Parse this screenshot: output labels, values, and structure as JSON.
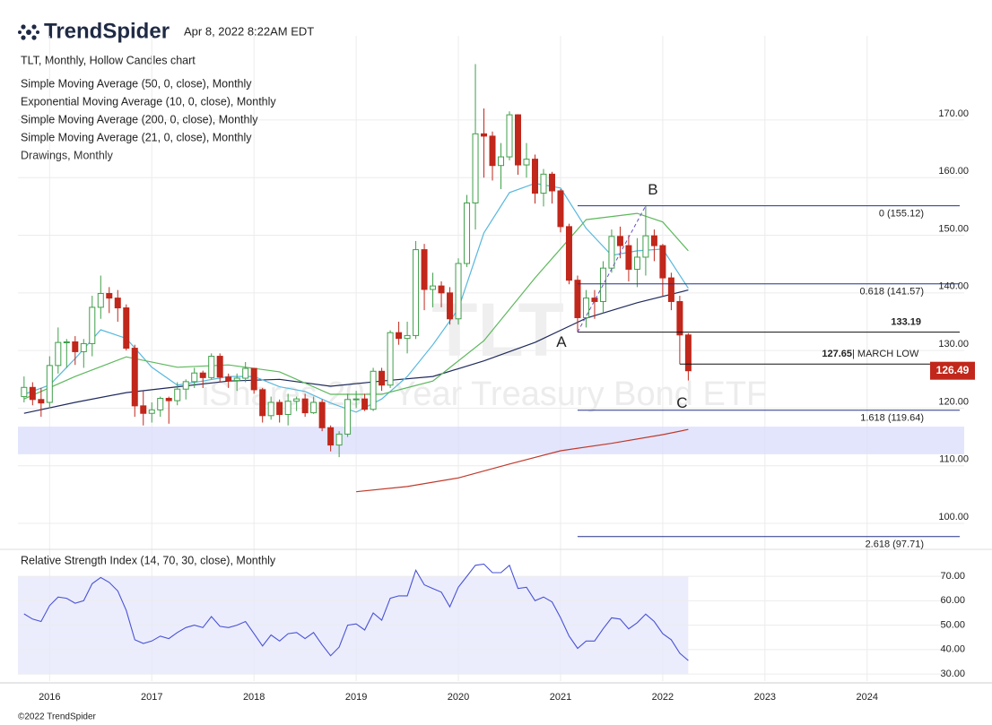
{
  "header": {
    "brand": "TrendSpider",
    "timestamp": "Apr 8, 2022 8:22AM EDT"
  },
  "footer": "©2022 TrendSpider",
  "chart_data": [
    {
      "type": "candlestick",
      "title": "TLT, Monthly, Hollow Candles chart",
      "watermark": "TLT",
      "watermark_subtitle": "iShares 20+ Year Treasury Bond ETF",
      "x": [
        "2015-10",
        "2015-11",
        "2015-12",
        "2016-01",
        "2016-02",
        "2016-03",
        "2016-04",
        "2016-05",
        "2016-06",
        "2016-07",
        "2016-08",
        "2016-09",
        "2016-10",
        "2016-11",
        "2016-12",
        "2017-01",
        "2017-02",
        "2017-03",
        "2017-04",
        "2017-05",
        "2017-06",
        "2017-07",
        "2017-08",
        "2017-09",
        "2017-10",
        "2017-11",
        "2017-12",
        "2018-01",
        "2018-02",
        "2018-03",
        "2018-04",
        "2018-05",
        "2018-06",
        "2018-07",
        "2018-08",
        "2018-09",
        "2018-10",
        "2018-11",
        "2018-12",
        "2019-01",
        "2019-02",
        "2019-03",
        "2019-04",
        "2019-05",
        "2019-06",
        "2019-07",
        "2019-08",
        "2019-09",
        "2019-10",
        "2019-11",
        "2019-12",
        "2020-01",
        "2020-02",
        "2020-03",
        "2020-04",
        "2020-05",
        "2020-06",
        "2020-07",
        "2020-08",
        "2020-09",
        "2020-10",
        "2020-11",
        "2020-12",
        "2021-01",
        "2021-02",
        "2021-03",
        "2021-04",
        "2021-05",
        "2021-06",
        "2021-07",
        "2021-08",
        "2021-09",
        "2021-10",
        "2021-11",
        "2021-12",
        "2022-01",
        "2022-02",
        "2022-03",
        "2022-04"
      ],
      "open": [
        122.0,
        123.6,
        121.5,
        121,
        127.4,
        131.4,
        131.5,
        129.8,
        131.2,
        137.5,
        139.9,
        139.1,
        137.4,
        130.4,
        120.4,
        119.1,
        119.7,
        121.7,
        121.3,
        123.3,
        124.6,
        126.1,
        125.3,
        129.0,
        125.4,
        124.8,
        125.2,
        126.9,
        123.2,
        118.7,
        121,
        118.9,
        121.2,
        121.6,
        119.2,
        121,
        116.6,
        113.6,
        115.5,
        121.5,
        121.6,
        119.8,
        126.4,
        124,
        133.1,
        132.1,
        132.6,
        147.5,
        140.6,
        141.2,
        140,
        135.5,
        145.1,
        155.6,
        167.6,
        167.2,
        162.1,
        163.6,
        170.9,
        162.2,
        163.2,
        157.3,
        160.6,
        157.7,
        151.5,
        142.2,
        135.7,
        139.1,
        138.5,
        144.3,
        149.8,
        148.2,
        144.1,
        146.2,
        149.9,
        148.2,
        142.6,
        138.5,
        132.7
      ],
      "high": [
        125.5,
        124.5,
        123.5,
        129,
        134,
        132,
        132.5,
        132,
        139.5,
        143,
        141,
        140.5,
        138,
        131,
        123,
        121,
        122,
        122,
        124.5,
        125,
        127,
        126.5,
        129.5,
        129.5,
        126,
        126,
        128,
        127,
        123.5,
        122,
        121.5,
        122.5,
        122,
        122.5,
        122,
        121.5,
        117,
        116,
        122.5,
        123,
        122.5,
        127,
        127,
        133.5,
        135,
        135,
        149,
        148.5,
        143.5,
        142,
        141,
        146,
        157,
        179.7,
        172,
        168,
        166,
        171.5,
        171,
        166,
        164,
        161.5,
        161,
        158,
        152,
        143,
        140.5,
        140.5,
        145.5,
        151,
        151.5,
        150,
        149.5,
        155.12,
        151,
        148.5,
        143.5,
        139.5,
        133
      ],
      "low": [
        121,
        120.5,
        118.5,
        120,
        126,
        127,
        127.5,
        127,
        129,
        135.5,
        136.5,
        135,
        130,
        118.5,
        117,
        117.5,
        118.5,
        117.3,
        120.5,
        121.5,
        123.5,
        123.5,
        125,
        124.5,
        123.5,
        123,
        124.5,
        122.5,
        117.5,
        118,
        117.5,
        117,
        119.5,
        118.5,
        119,
        116,
        112.5,
        111.5,
        115,
        120,
        119.5,
        119.5,
        123,
        123.5,
        131,
        129.5,
        132,
        137,
        137.5,
        137.5,
        134.5,
        134.5,
        144.5,
        151,
        160,
        159.5,
        158,
        163,
        160.5,
        160,
        155.5,
        155,
        155.5,
        150.5,
        141.5,
        133.19,
        134,
        135.5,
        136.5,
        143.5,
        146,
        142,
        141,
        143,
        145.5,
        139.5,
        137,
        127.65,
        124.8
      ],
      "close": [
        123.6,
        121.5,
        120.9,
        127.4,
        131.4,
        131.5,
        129.8,
        131.2,
        137.5,
        139.9,
        139.1,
        137.4,
        130.4,
        120.4,
        119.1,
        119.7,
        121.7,
        121.3,
        123.3,
        124.6,
        126.1,
        125.3,
        129.0,
        125.4,
        124.8,
        125.2,
        126.9,
        123.2,
        118.7,
        121.0,
        118.9,
        121.2,
        121.6,
        119.2,
        121.0,
        116.6,
        113.6,
        115.5,
        121.5,
        121.6,
        119.8,
        126.4,
        124.0,
        133.1,
        132.1,
        132.6,
        147.5,
        140.6,
        141.2,
        140.0,
        135.5,
        145.1,
        155.6,
        167.6,
        167.2,
        162.1,
        163.6,
        170.9,
        162.2,
        163.2,
        157.3,
        160.6,
        157.7,
        151.5,
        142.2,
        135.7,
        139.1,
        138.5,
        144.3,
        149.8,
        148.2,
        144.1,
        146.2,
        149.9,
        148.2,
        142.6,
        138.5,
        132.7,
        126.49
      ],
      "up_color": "#3f9f4a",
      "down_color": "#c1271b",
      "overlays": [
        {
          "name": "Simple Moving Average (50, 0, close), Monthly",
          "color": "#1f2a5c",
          "x": [
            "2015-10",
            "2016-04",
            "2016-10",
            "2017-04",
            "2017-10",
            "2018-04",
            "2018-10",
            "2019-04",
            "2019-10",
            "2020-04",
            "2020-10",
            "2021-04",
            "2021-10",
            "2022-04"
          ],
          "values": [
            119.1,
            121,
            122.7,
            123.7,
            124.7,
            125,
            123.8,
            124.7,
            125.5,
            128.2,
            131.4,
            135.6,
            138.3,
            140.5
          ]
        },
        {
          "name": "Exponential Moving Average (10, 0, close), Monthly",
          "color": "#57b8de",
          "x": [
            "2015-10",
            "2016-01",
            "2016-04",
            "2016-07",
            "2016-10",
            "2017-01",
            "2017-04",
            "2017-07",
            "2017-10",
            "2018-01",
            "2018-04",
            "2018-07",
            "2018-10",
            "2019-01",
            "2019-04",
            "2019-07",
            "2019-10",
            "2020-01",
            "2020-04",
            "2020-07",
            "2020-10",
            "2021-01",
            "2021-04",
            "2021-07",
            "2021-10",
            "2022-01",
            "2022-04"
          ],
          "values": [
            122.4,
            124,
            128.6,
            133.6,
            132.1,
            127.1,
            124,
            124.7,
            125.5,
            125.5,
            123.7,
            122.9,
            120.9,
            119.3,
            121.6,
            125.5,
            131,
            137.2,
            150.4,
            157.4,
            159,
            158.2,
            151.2,
            146.5,
            147.3,
            147.6,
            140.8
          ]
        },
        {
          "name": "Simple Moving Average (200, 0, close), Monthly",
          "color": "#c0392b",
          "x": [
            "2019-01",
            "2019-07",
            "2020-01",
            "2020-07",
            "2021-01",
            "2021-07",
            "2022-01",
            "2022-04"
          ],
          "values": [
            105.5,
            106.4,
            107.9,
            110.3,
            112.6,
            113.9,
            115.4,
            116.3
          ]
        },
        {
          "name": "Simple Moving Average (21, 0, close), Monthly",
          "color": "#5cb85c",
          "x": [
            "2015-10",
            "2016-04",
            "2016-10",
            "2017-04",
            "2017-10",
            "2018-04",
            "2018-10",
            "2019-04",
            "2019-10",
            "2020-04",
            "2020-10",
            "2021-04",
            "2021-10",
            "2022-01",
            "2022-04"
          ],
          "values": [
            121.6,
            125.5,
            128.9,
            127.1,
            127.5,
            126.3,
            122.4,
            122.4,
            124.7,
            131.7,
            142.6,
            152.7,
            153.8,
            152.3,
            147.3
          ]
        }
      ],
      "drawings_label": "Drawings, Monthly",
      "fib_color": "#26318a",
      "fib_levels": [
        {
          "label": "0 (155.12)",
          "value": 155.12,
          "from": "2021-03"
        },
        {
          "label": "0.618 (141.57)",
          "value": 141.57,
          "from": "2021-03"
        },
        {
          "label": "1.618 (119.64)",
          "value": 119.64,
          "from": "2021-03"
        },
        {
          "label": "2.618 (97.71)",
          "value": 97.71,
          "from": "2021-03"
        }
      ],
      "levels": [
        {
          "label": "133.19",
          "value": 133.19,
          "from": "2021-03"
        },
        {
          "label": "127.65",
          "value": 127.65,
          "from": "2022-03",
          "note": "| MARCH LOW"
        }
      ],
      "annotations": [
        {
          "text": "A",
          "x": "2021-03",
          "value": 133.19
        },
        {
          "text": "B",
          "x": "2021-11",
          "value": 155.12
        },
        {
          "text": "C",
          "x": "2022-04",
          "value": 119.64
        }
      ],
      "support_zone": [
        112,
        116.8
      ],
      "last_price": 126.49,
      "xlim": [
        2015.69,
        2024.95
      ],
      "xticks": [
        2016,
        2017,
        2018,
        2019,
        2020,
        2021,
        2022,
        2023,
        2024
      ],
      "ylim": [
        95.5,
        184.6
      ],
      "yticks": [
        {
          "value": 100,
          "label": "100.00"
        },
        {
          "value": 110,
          "label": "110.00"
        },
        {
          "value": 120,
          "label": "120.00"
        },
        {
          "value": 130,
          "label": "130.00"
        },
        {
          "value": 140,
          "label": "140.00"
        },
        {
          "value": 150,
          "label": "150.00"
        },
        {
          "value": 160,
          "label": "160.00"
        },
        {
          "value": 170,
          "label": "170.00"
        }
      ],
      "grid": true
    },
    {
      "type": "line",
      "title": "Relative Strength Index (14, 70, 30, close), Monthly",
      "color": "#4a52d6",
      "values": [
        54.6,
        52.5,
        51.5,
        58,
        61.5,
        61,
        59,
        60,
        67,
        69.5,
        67.5,
        64,
        56,
        44,
        42.5,
        43.5,
        45.5,
        44.5,
        47,
        49,
        50,
        49,
        53.5,
        49.5,
        49,
        50,
        51.5,
        46.5,
        41.5,
        46,
        43.5,
        46.5,
        47,
        44.5,
        47,
        42,
        37.5,
        41,
        50,
        50.5,
        48,
        55,
        52,
        61,
        62,
        62,
        72.5,
        66.5,
        65,
        63.5,
        57.5,
        65.5,
        70,
        74.5,
        75,
        71.5,
        71.5,
        74.5,
        65,
        65.5,
        60,
        61.5,
        59.5,
        53,
        45.5,
        40.5,
        43.5,
        43.5,
        48.5,
        53,
        52.5,
        48.5,
        51,
        54.5,
        51.5,
        46.5,
        44,
        38.5,
        35.5
      ],
      "band": [
        30,
        70
      ],
      "ylim": [
        27.1,
        80.3
      ],
      "yticks": [
        {
          "value": 30,
          "label": "30.00"
        },
        {
          "value": 40,
          "label": "40.00"
        },
        {
          "value": 50,
          "label": "50.00"
        },
        {
          "value": 60,
          "label": "60.00"
        },
        {
          "value": 70,
          "label": "70.00"
        }
      ]
    }
  ]
}
